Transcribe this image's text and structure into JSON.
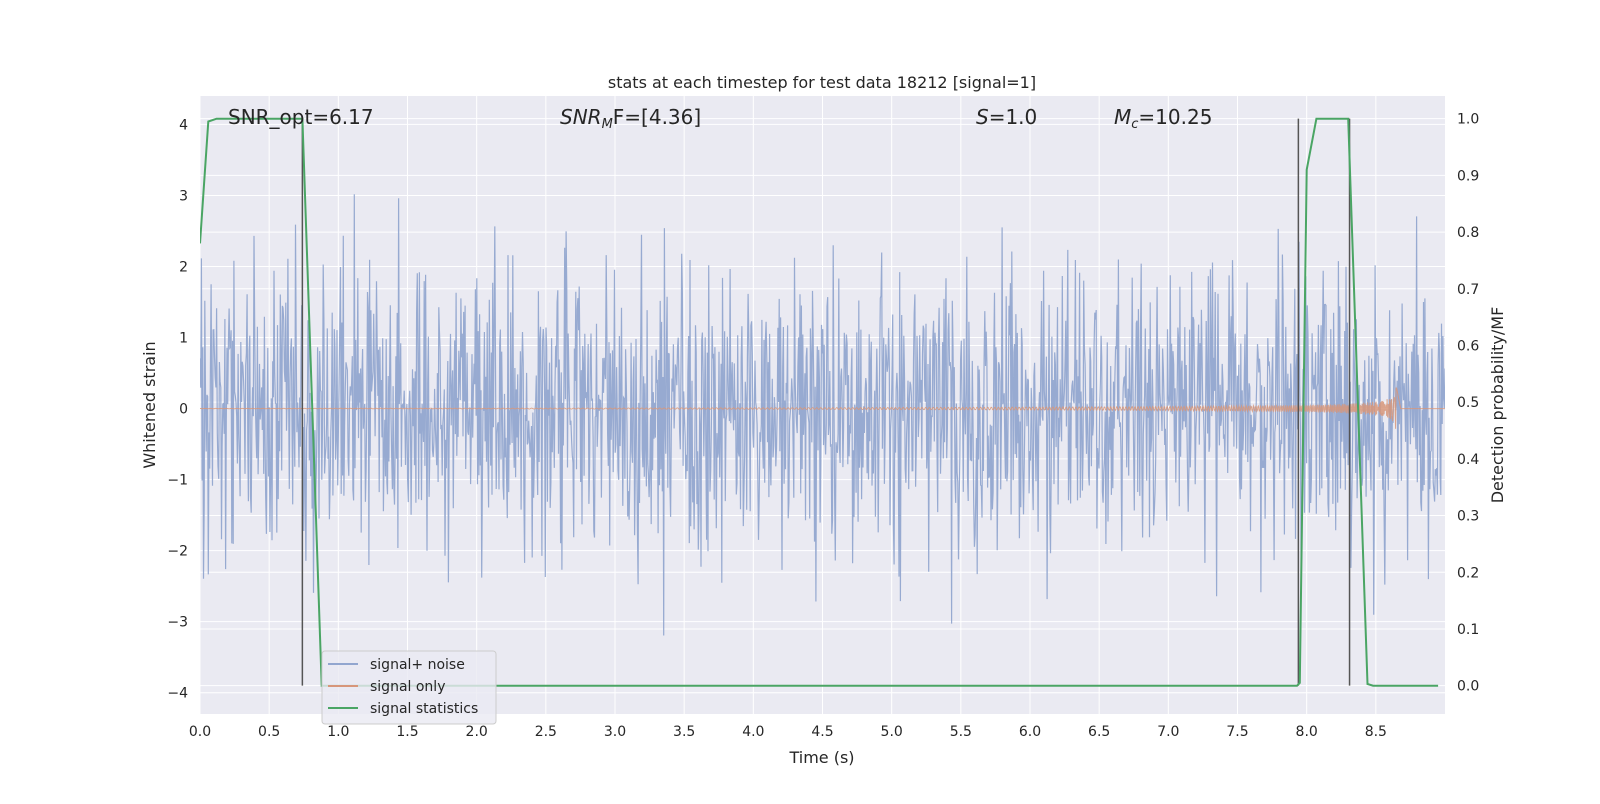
{
  "chart_data": {
    "type": "line",
    "title": "stats at each timestep for test data 18212 [signal=1]",
    "xlabel": "Time (s)",
    "ylabel": "Whitened strain",
    "ylabel_right": "Detection probability/MF",
    "xlim": [
      0.0,
      9.0
    ],
    "ylim": [
      -4.3,
      4.4
    ],
    "ylim_right": [
      -0.05,
      1.04
    ],
    "xticks": [
      "0.0",
      "0.5",
      "1.0",
      "1.5",
      "2.0",
      "2.5",
      "3.0",
      "3.5",
      "4.0",
      "4.5",
      "5.0",
      "5.5",
      "6.0",
      "6.5",
      "7.0",
      "7.5",
      "8.0",
      "8.5"
    ],
    "xtick_values": [
      0.0,
      0.5,
      1.0,
      1.5,
      2.0,
      2.5,
      3.0,
      3.5,
      4.0,
      4.5,
      5.0,
      5.5,
      6.0,
      6.5,
      7.0,
      7.5,
      8.0,
      8.5
    ],
    "yticks": [
      "4",
      "3",
      "2",
      "1",
      "0",
      "−1",
      "−2",
      "−3",
      "−4"
    ],
    "ytick_values": [
      4,
      3,
      2,
      1,
      0,
      -1,
      -2,
      -3,
      -4
    ],
    "yticks_right": [
      "1.0",
      "0.9",
      "0.8",
      "0.7",
      "0.6",
      "0.5",
      "0.4",
      "0.3",
      "0.2",
      "0.1",
      "0.0"
    ],
    "ytick_values_right": [
      1.0,
      0.9,
      0.8,
      0.7,
      0.6,
      0.5,
      0.4,
      0.3,
      0.2,
      0.1,
      0.0
    ],
    "grid": true,
    "legend_placement": "lower-left",
    "annotations": {
      "snr_opt": "SNR_opt=6.17",
      "snr_mf_symbol": "SNR",
      "snr_mf_sub": "M",
      "snr_mf_rest": "F=[4.36]",
      "s_symbol": "S",
      "s_rest": "=1.0",
      "mc_symbol": "M",
      "mc_sub": "c",
      "mc_rest": "=10.25"
    },
    "vertical_markers_x": [
      0.74,
      7.94,
      8.31
    ],
    "series": [
      {
        "name": "signal+ noise",
        "color": "#92a6cf",
        "kind": "noise",
        "sigma": 1.0,
        "spike_max": 4.0,
        "spike_min": -3.9
      },
      {
        "name": "signal only",
        "color": "#d7967a",
        "kind": "chirp",
        "t_merger": 8.65,
        "peak_amplitude": 0.85
      },
      {
        "name": "signal statistics",
        "color": "#4aa564",
        "axis": "right",
        "x": [
          0.0,
          0.06,
          0.12,
          0.5,
          0.7,
          0.74,
          0.88,
          7.93,
          7.95,
          8.0,
          8.07,
          8.3,
          8.44,
          8.48,
          8.95
        ],
        "values": [
          0.78,
          0.995,
          1.0,
          1.0,
          1.0,
          1.0,
          0.0,
          0.0,
          0.005,
          0.91,
          1.0,
          1.0,
          0.003,
          0.0,
          0.0
        ]
      }
    ]
  },
  "colors": {
    "background": "#eaeaf2",
    "grid": "#ffffff",
    "marker_line": "#555555"
  }
}
